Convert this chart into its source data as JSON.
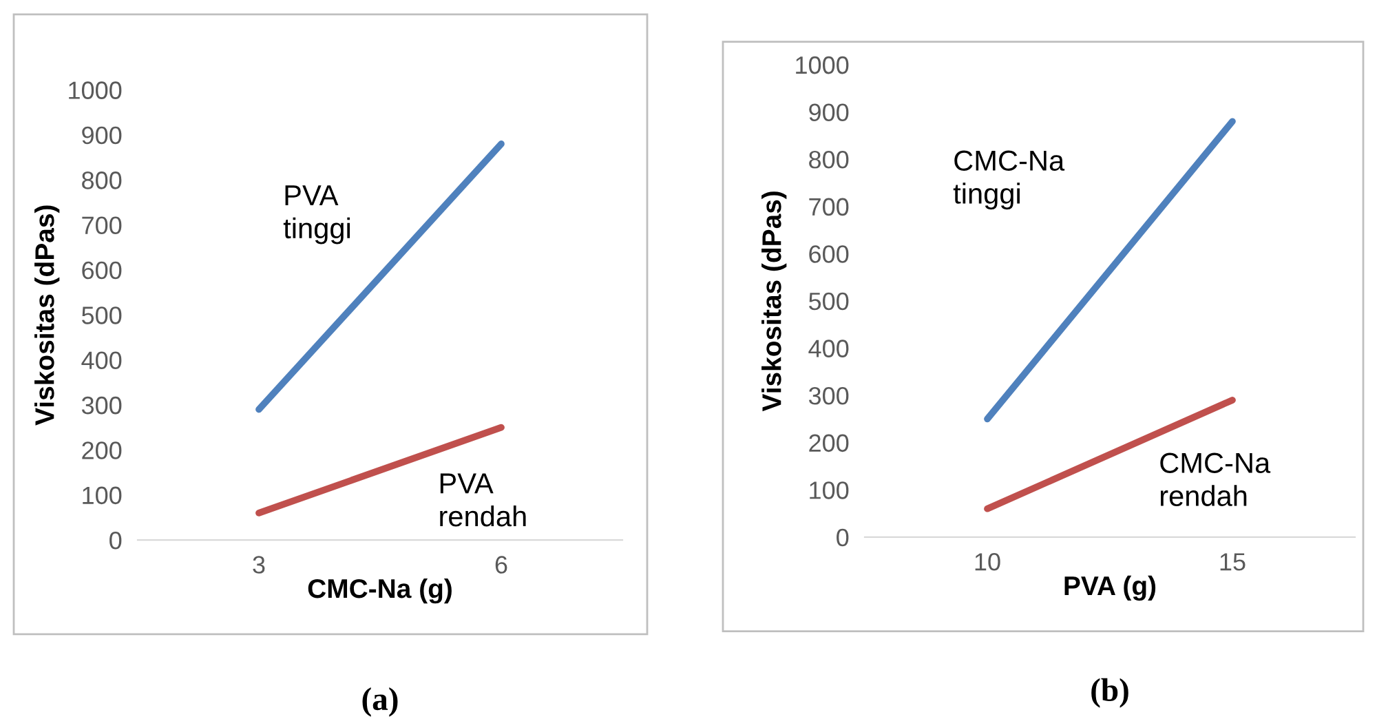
{
  "chart_data": [
    {
      "type": "line",
      "xlabel": "CMC-Na (g)",
      "ylabel": "Viskositas (dPas)",
      "categories": [
        "3",
        "6"
      ],
      "ylim": [
        0,
        1000
      ],
      "yticks": [
        0,
        100,
        200,
        300,
        400,
        500,
        600,
        700,
        800,
        900,
        1000
      ],
      "grid": false,
      "annotations": [
        "(a)"
      ],
      "series": [
        {
          "name": "PVA tinggi",
          "color": "#4f81bd",
          "values": [
            290,
            880
          ]
        },
        {
          "name": "PVA rendah",
          "color": "#c0504d",
          "values": [
            60,
            250
          ]
        }
      ]
    },
    {
      "type": "line",
      "xlabel": "PVA (g)",
      "ylabel": "Viskositas (dPas)",
      "categories": [
        "10",
        "15"
      ],
      "ylim": [
        0,
        1000
      ],
      "yticks": [
        0,
        100,
        200,
        300,
        400,
        500,
        600,
        700,
        800,
        900,
        1000
      ],
      "grid": false,
      "annotations": [
        "(b)"
      ],
      "series": [
        {
          "name": "CMC-Na tinggi",
          "color": "#4f81bd",
          "values": [
            250,
            880
          ]
        },
        {
          "name": "CMC-Na rendah",
          "color": "#c0504d",
          "values": [
            60,
            290
          ]
        }
      ]
    }
  ]
}
